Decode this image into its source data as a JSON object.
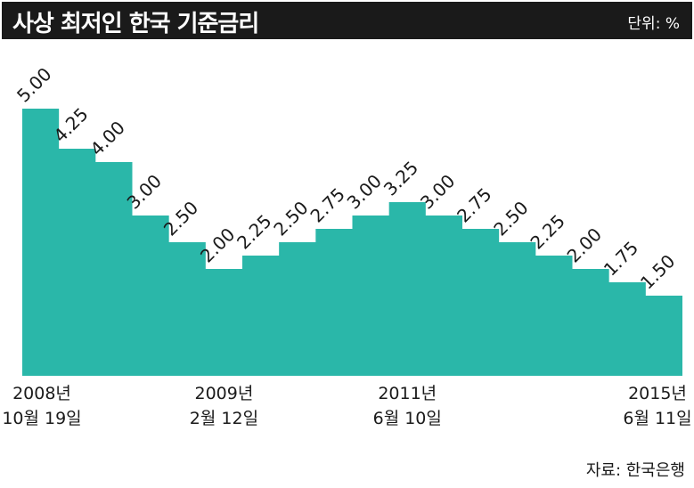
{
  "title": "사상 최저인 한국 기준금리",
  "unit_label": "단위: %",
  "source_label": "자료: 한국은행",
  "chart_data": {
    "type": "area",
    "step": true,
    "color": "#2ab7a9",
    "values": [
      5.0,
      4.25,
      4.0,
      3.0,
      2.5,
      2.0,
      2.25,
      2.5,
      2.75,
      3.0,
      3.25,
      3.0,
      2.75,
      2.5,
      2.25,
      2.0,
      1.75,
      1.5
    ],
    "value_labels": [
      "5.00",
      "4.25",
      "4.00",
      "3.00",
      "2.50",
      "2.00",
      "2.25",
      "2.50",
      "2.75",
      "3.00",
      "3.25",
      "3.00",
      "2.75",
      "2.50",
      "2.25",
      "2.00",
      "1.75",
      "1.50"
    ],
    "x_labels": [
      {
        "index": 0,
        "line1": "2008년",
        "line2": "10월 19일"
      },
      {
        "index": 5,
        "line1": "2009년",
        "line2": "2월 12일"
      },
      {
        "index": 10,
        "line1": "2011년",
        "line2": "6월 10일"
      },
      {
        "index": 17,
        "line1": "2015년",
        "line2": "6월 11일"
      }
    ],
    "ylim": [
      0,
      5.2
    ],
    "grid": false
  }
}
